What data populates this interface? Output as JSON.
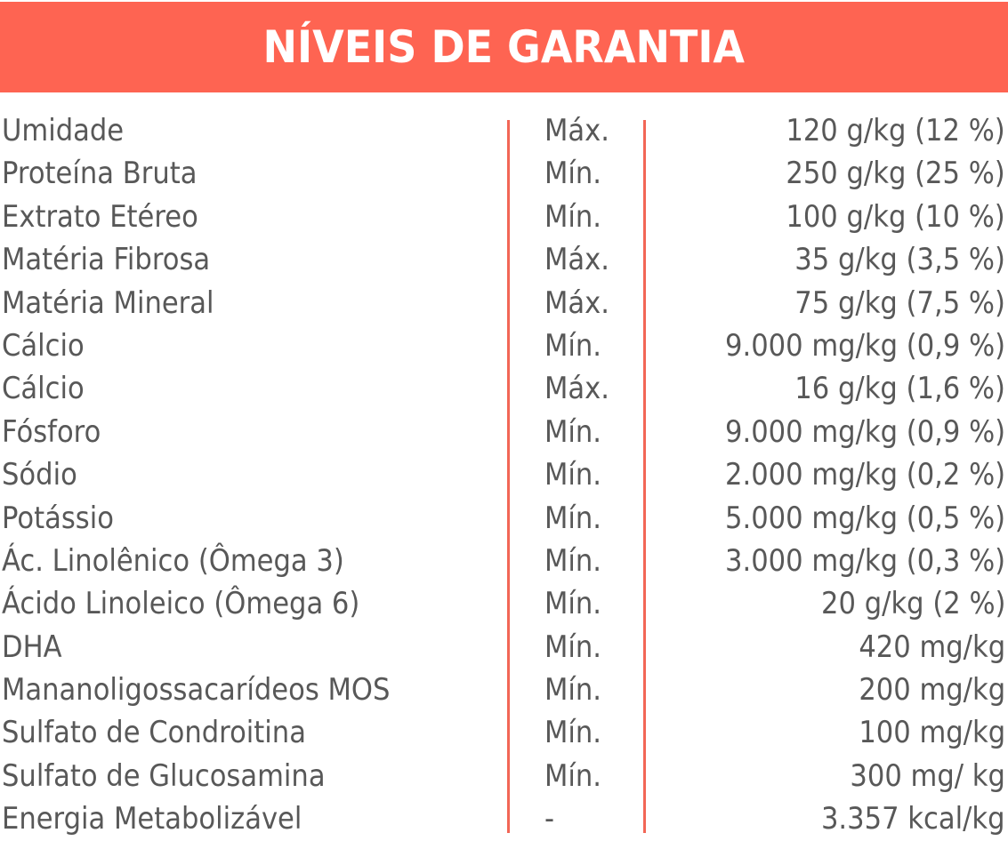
{
  "header": {
    "title": "NÍVEIS DE GARANTIA",
    "background_color": "#fe6452",
    "text_color": "#ffffff"
  },
  "colors": {
    "divider": "#f26656",
    "text": "#585858"
  },
  "rows": [
    {
      "name": "Umidade",
      "type": "Máx.",
      "value": "120 g/kg (12 %)"
    },
    {
      "name": "Proteína Bruta",
      "type": "Mín.",
      "value": "250 g/kg (25 %)"
    },
    {
      "name": "Extrato Etéreo",
      "type": "Mín.",
      "value": "100 g/kg (10 %)"
    },
    {
      "name": "Matéria Fibrosa",
      "type": "Máx.",
      "value": "35 g/kg (3,5 %)"
    },
    {
      "name": "Matéria Mineral",
      "type": "Máx.",
      "value": "75 g/kg (7,5 %)"
    },
    {
      "name": "Cálcio",
      "type": "Mín.",
      "value": "9.000 mg/kg (0,9 %)"
    },
    {
      "name": "Cálcio",
      "type": "Máx.",
      "value": "16 g/kg (1,6 %)"
    },
    {
      "name": "Fósforo",
      "type": "Mín.",
      "value": "9.000 mg/kg (0,9 %)"
    },
    {
      "name": "Sódio",
      "type": "Mín.",
      "value": "2.000 mg/kg (0,2 %)"
    },
    {
      "name": "Potássio",
      "type": "Mín.",
      "value": "5.000 mg/kg (0,5 %)"
    },
    {
      "name": "Ác. Linolênico (Ômega 3)",
      "type": "Mín.",
      "value": "3.000 mg/kg (0,3 %)"
    },
    {
      "name": "Ácido Linoleico (Ômega 6)",
      "type": "Mín.",
      "value": "20 g/kg (2 %)"
    },
    {
      "name": "DHA",
      "type": "Mín.",
      "value": "420 mg/kg"
    },
    {
      "name": "Mananoligossacarídeos MOS",
      "type": "Mín.",
      "value": "200 mg/kg"
    },
    {
      "name": "Sulfato de Condroitina",
      "type": "Mín.",
      "value": "100 mg/kg"
    },
    {
      "name": "Sulfato de Glucosamina",
      "type": "Mín.",
      "value": "300 mg/ kg"
    },
    {
      "name": "Energia Metabolizável",
      "type": "-",
      "value": "3.357 kcal/kg"
    }
  ]
}
